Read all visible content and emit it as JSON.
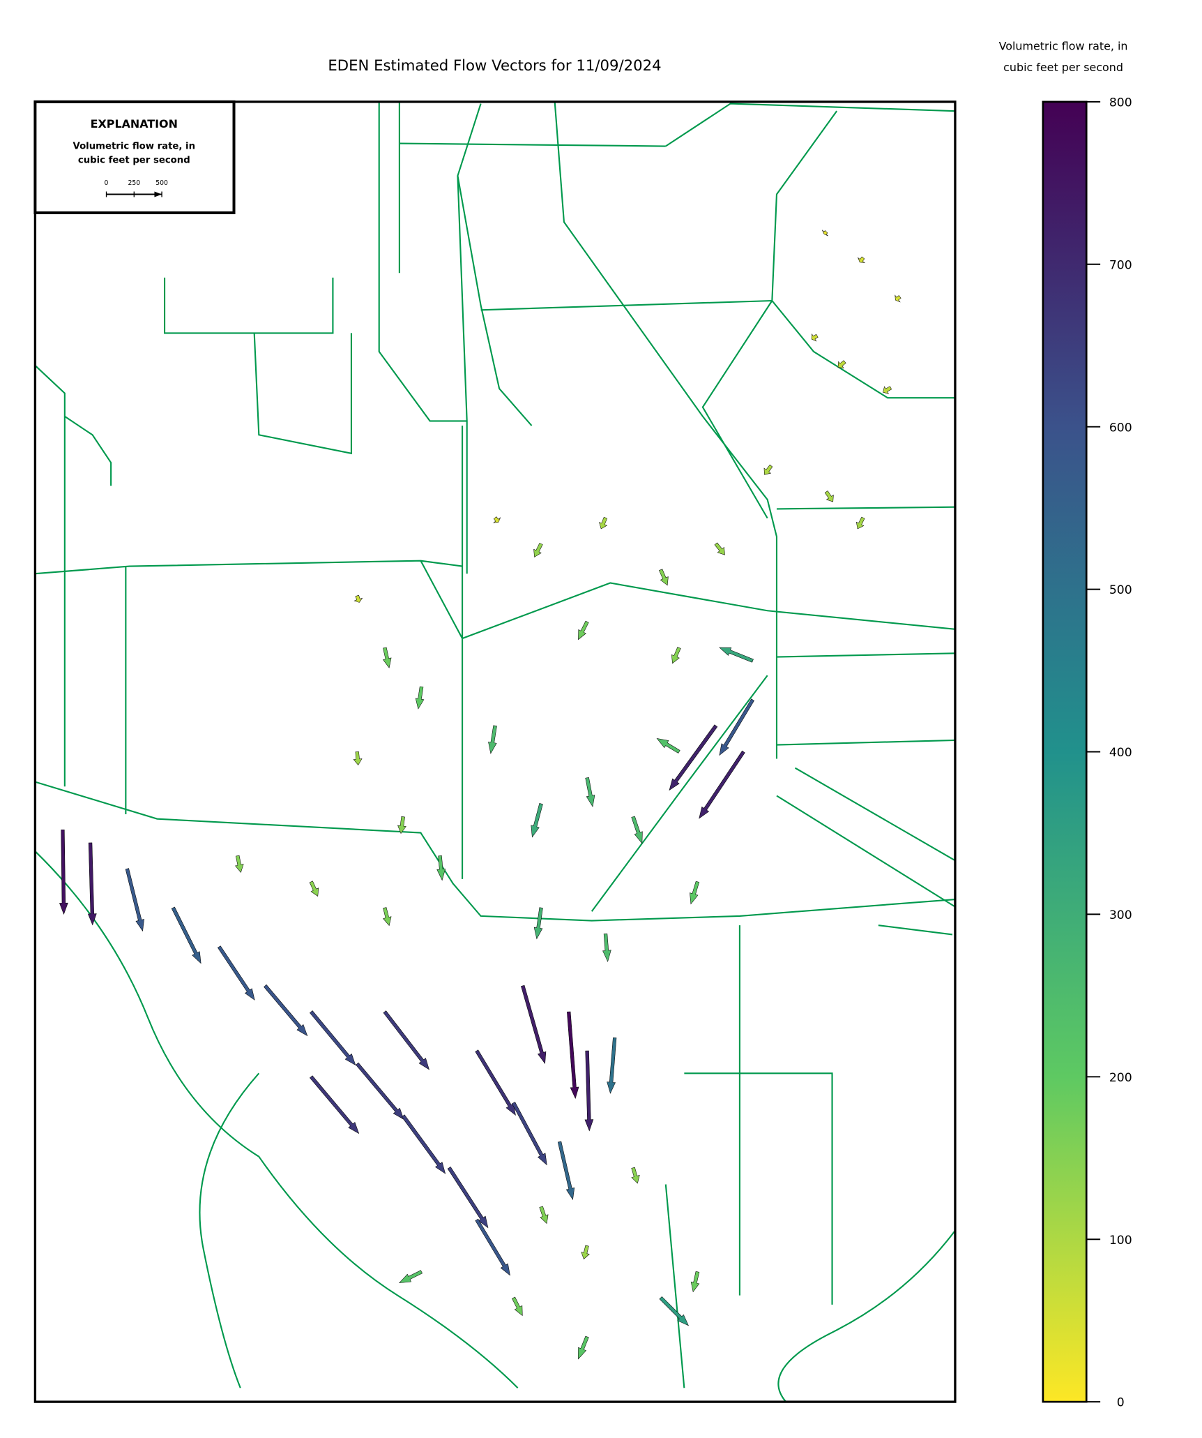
{
  "chart_data": {
    "type": "quiver",
    "title": "EDEN Estimated Flow Vectors for 11/09/2024",
    "colormap": [
      "#fde725",
      "#5ec962",
      "#21918c",
      "#3b528b",
      "#440154"
    ],
    "colorbar": {
      "label": [
        "Volumetric flow rate, in",
        "cubic feet per second"
      ],
      "lim": [
        0,
        800
      ],
      "ticks": [
        0,
        100,
        200,
        300,
        400,
        500,
        600,
        700,
        800
      ]
    },
    "legend": {
      "title": "EXPLANATION",
      "label": [
        "Volumetric flow rate, in",
        "cubic feet per second"
      ],
      "key_ticks": [
        0,
        250,
        500
      ]
    },
    "x": [
      0.86,
      0.9,
      0.94,
      0.88,
      0.93,
      0.85,
      0.8,
      0.86,
      0.9,
      0.5,
      0.55,
      0.62,
      0.68,
      0.74,
      0.6,
      0.7,
      0.78,
      0.35,
      0.38,
      0.42,
      0.35,
      0.4,
      0.44,
      0.5,
      0.55,
      0.6,
      0.65,
      0.7,
      0.72,
      0.55,
      0.62,
      0.74,
      0.77,
      0.78,
      0.03,
      0.06,
      0.1,
      0.15,
      0.2,
      0.25,
      0.3,
      0.35,
      0.4,
      0.45,
      0.48,
      0.3,
      0.38,
      0.48,
      0.52,
      0.53,
      0.58,
      0.6,
      0.57,
      0.63,
      0.22,
      0.3,
      0.38,
      0.55,
      0.6,
      0.65,
      0.68,
      0.6,
      0.52,
      0.72,
      0.42
    ],
    "y": [
      0.9,
      0.88,
      0.85,
      0.8,
      0.78,
      0.82,
      0.72,
      0.7,
      0.68,
      0.68,
      0.66,
      0.68,
      0.64,
      0.66,
      0.6,
      0.58,
      0.57,
      0.62,
      0.58,
      0.55,
      0.5,
      0.45,
      0.42,
      0.52,
      0.46,
      0.48,
      0.45,
      0.5,
      0.4,
      0.38,
      0.36,
      0.52,
      0.5,
      0.54,
      0.44,
      0.43,
      0.41,
      0.38,
      0.35,
      0.32,
      0.3,
      0.26,
      0.22,
      0.18,
      0.14,
      0.25,
      0.3,
      0.27,
      0.23,
      0.32,
      0.3,
      0.27,
      0.2,
      0.28,
      0.42,
      0.4,
      0.38,
      0.15,
      0.12,
      0.18,
      0.08,
      0.05,
      0.08,
      0.1,
      0.1
    ],
    "u": [
      -20,
      -30,
      -40,
      -60,
      -70,
      -50,
      -60,
      60,
      -50,
      30,
      -60,
      -40,
      60,
      80,
      -80,
      -60,
      -300,
      20,
      40,
      -30,
      10,
      -20,
      20,
      -40,
      -80,
      50,
      80,
      -200,
      -60,
      -40,
      20,
      -420,
      -400,
      -300,
      10,
      20,
      140,
      250,
      320,
      380,
      400,
      420,
      380,
      350,
      300,
      430,
      400,
      350,
      300,
      200,
      60,
      20,
      120,
      -40,
      30,
      60,
      40,
      50,
      -30,
      40,
      250,
      -80,
      80,
      -40,
      -200
    ],
    "v": [
      -20,
      -40,
      -30,
      -50,
      -40,
      -30,
      -80,
      -90,
      -100,
      -40,
      -120,
      -100,
      -140,
      -100,
      -160,
      -140,
      120,
      -60,
      -180,
      -200,
      -120,
      -150,
      -220,
      -250,
      -300,
      -260,
      -240,
      120,
      -200,
      -280,
      -250,
      -580,
      -600,
      -500,
      -760,
      -740,
      -560,
      -500,
      -480,
      -450,
      -480,
      -500,
      -520,
      -540,
      -500,
      -510,
      -520,
      -580,
      -560,
      -700,
      -780,
      -720,
      -520,
      -500,
      -150,
      -130,
      -160,
      -150,
      -120,
      -140,
      -250,
      -200,
      -160,
      -180,
      -100
    ]
  }
}
